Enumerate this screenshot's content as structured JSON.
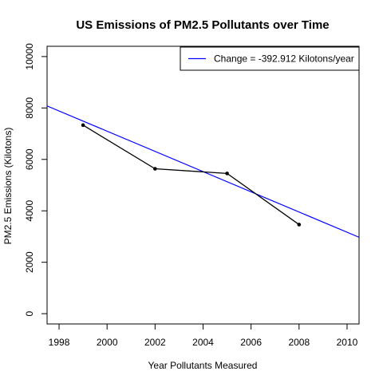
{
  "chart_data": {
    "type": "line",
    "title": "US Emissions of PM2.5 Pollutants over Time",
    "xlabel": "Year Pollutants Measured",
    "ylabel": "PM2.5 Emissions (Kilotons)",
    "xlim": [
      1997.5,
      2010.5
    ],
    "ylim": [
      -400,
      10400
    ],
    "x_ticks": [
      1998,
      2000,
      2002,
      2004,
      2006,
      2008,
      2010
    ],
    "y_ticks": [
      0,
      2000,
      4000,
      6000,
      8000,
      10000
    ],
    "series": [
      {
        "x": [
          1999,
          2002,
          2005,
          2008
        ],
        "values": [
          7332,
          5636,
          5454,
          3465
        ],
        "color": "#000000",
        "markers": true
      }
    ],
    "trend_line": {
      "slope": -392.912,
      "intercept": 792921,
      "color": "#0000ff"
    },
    "legend": {
      "position": "top-right",
      "entries": [
        {
          "label": "Change = -392.912 Kilotons/year",
          "color": "#0000ff"
        }
      ]
    },
    "grid": false
  }
}
